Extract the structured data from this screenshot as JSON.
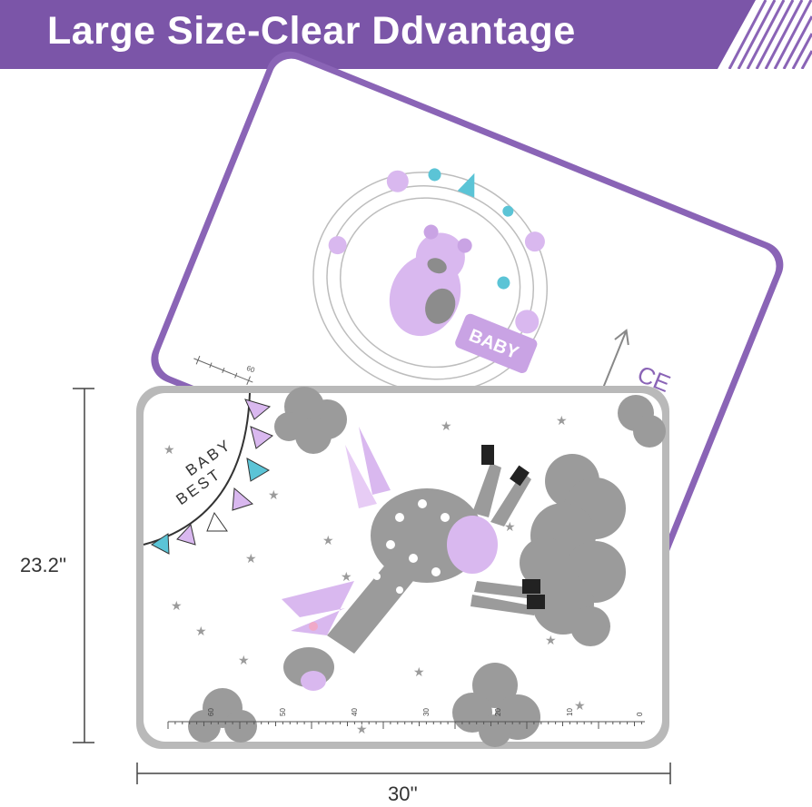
{
  "banner": {
    "title": "Large Size-Clear Ddvantage",
    "color": "#7b55a8"
  },
  "mats": {
    "back": {
      "border_color": "#8a64b6",
      "text": "BABY",
      "text_fragment": "CE"
    },
    "front": {
      "border_color": "#b9b9b9",
      "corner_text_line1": "BEST",
      "corner_text_line2": "BABY"
    }
  },
  "ruler": {
    "labels": [
      "60",
      "50",
      "40",
      "30",
      "20",
      "10",
      "0"
    ],
    "back_label": "60"
  },
  "dimensions": {
    "height": "23.2''",
    "width": "30''"
  },
  "colors": {
    "lavender": "#d9b8ef",
    "gray": "#9b9b9b",
    "teal": "#5bc4d6",
    "purple": "#8a64b6"
  }
}
